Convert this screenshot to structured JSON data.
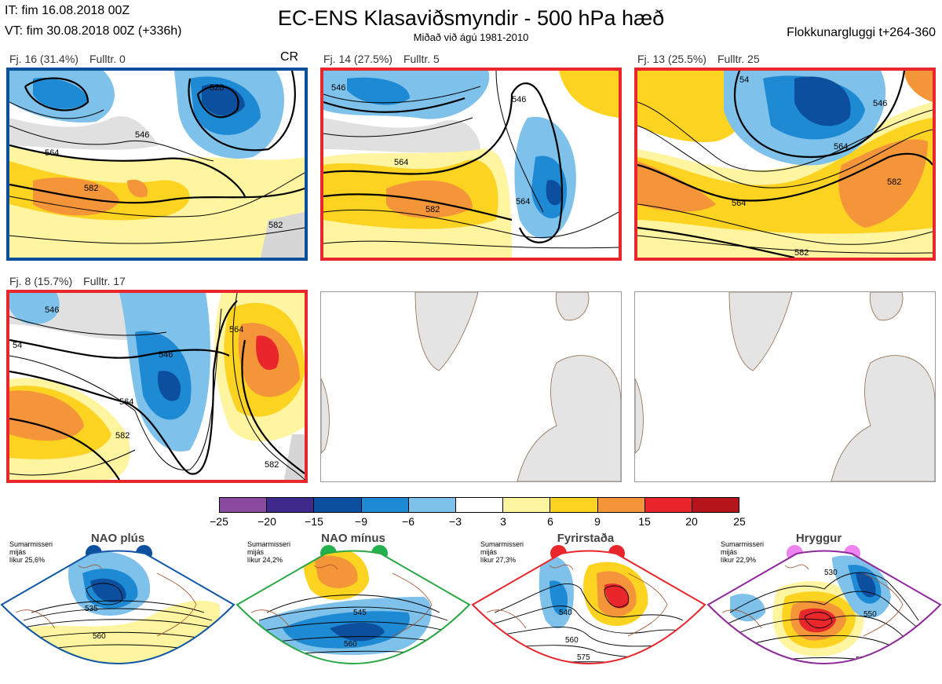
{
  "header": {
    "initial_time": "IT: fim 16.08.2018 00Z",
    "valid_time": "VT: fim 30.08.2018 00Z  (+336h)",
    "title": "EC-ENS Klasaviðsmyndir - 500 hPa hæð",
    "subtitle": "Miðað við ágú 1981-2010",
    "window": "Flokkunargluggi t+264-360"
  },
  "clusters": [
    {
      "label": "Fj. 16 (31.4%)",
      "rep": "Fulltr. 0",
      "badge": "CR",
      "border": "#0a4f9c",
      "contours": [
        "528",
        "546",
        "564",
        "582",
        "582"
      ]
    },
    {
      "label": "Fj. 14 (27.5%)",
      "rep": "Fulltr. 5",
      "badge": "",
      "border": "#e8262b",
      "contours": [
        "546",
        "546",
        "564",
        "582",
        "564"
      ]
    },
    {
      "label": "Fj. 13 (25.5%)",
      "rep": "Fulltr. 25",
      "badge": "",
      "border": "#e8262b",
      "contours": [
        "54",
        "546",
        "564",
        "564",
        "582",
        "582"
      ]
    },
    {
      "label": "Fj. 8 (15.7%)",
      "rep": "Fulltr. 17",
      "badge": "",
      "border": "#e8262b",
      "contours": [
        "546",
        "54",
        "546",
        "564",
        "564",
        "582",
        "582"
      ]
    }
  ],
  "colorbar": {
    "ticks": [
      "−25",
      "−20",
      "−15",
      "−9",
      "−6",
      "−3",
      "3",
      "6",
      "9",
      "15",
      "20",
      "25"
    ],
    "colors": [
      "#8a4aa0",
      "#3f2a8c",
      "#0b4f9e",
      "#1f8ad4",
      "#7ec1ea",
      "#ffffff",
      "#fff4a0",
      "#fdd321",
      "#f5953a",
      "#e8262b",
      "#b5141a"
    ]
  },
  "regimes": [
    {
      "name": "NAO plús",
      "note": [
        "Sumarmisseri",
        "mijás",
        "líkur 25,6%"
      ],
      "color": "#0b4f9e",
      "border": "#1257a6",
      "contours": [
        "535",
        "560"
      ]
    },
    {
      "name": "NAO mínus",
      "note": [
        "Sumarmisseri",
        "mijás",
        "líkur 24,2%"
      ],
      "color": "#23b14d",
      "border": "#2aa845",
      "contours": [
        "545",
        "560",
        "575"
      ]
    },
    {
      "name": "Fyrirstaða",
      "note": [
        "Sumarmisseri",
        "mijás",
        "líkur 27,3%"
      ],
      "color": "#e8262b",
      "border": "#e8262b",
      "contours": [
        "540",
        "560",
        "575"
      ]
    },
    {
      "name": "Hryggur",
      "note": [
        "Sumarmisseri",
        "mijás",
        "líkur 22,9%"
      ],
      "color": "#ee82ee",
      "border": "#8e2a9a",
      "contours": [
        "530",
        "550",
        "575"
      ]
    }
  ]
}
